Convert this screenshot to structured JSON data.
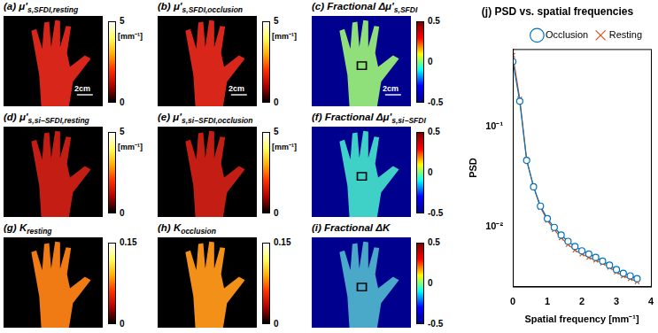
{
  "panels": [
    {
      "label": "(a)",
      "main": "μ'",
      "sub": "s,SFDI,resting",
      "color": "#d8261a",
      "scale_bar": "2cm",
      "colorbar": {
        "range": [
          0,
          5
        ],
        "ticks": [
          0,
          5
        ],
        "unit": "[mm⁻¹]"
      }
    },
    {
      "label": "(b)",
      "main": "μ'",
      "sub": "s,SFDI,occlusion",
      "color": "#d8261a",
      "scale_bar": "2cm",
      "colorbar": {
        "range": [
          0,
          5
        ],
        "ticks": [
          0,
          5
        ],
        "unit": "[mm⁻¹]"
      }
    },
    {
      "label": "(c)",
      "main": "Fractional Δμ'",
      "sub": "s,SFDI",
      "color": "#8fe07a",
      "scale_bar": "2cm",
      "colorbar": {
        "range": [
          -0.5,
          0.5
        ],
        "ticks": [
          -0.5,
          0,
          0.5
        ]
      }
    },
    {
      "label": "(d)",
      "main": "μ'",
      "sub": "s,si−SFDI,resting",
      "color": "#c41e14",
      "colorbar": {
        "range": [
          0,
          5
        ],
        "ticks": [
          0,
          5
        ],
        "unit": "[mm⁻¹]"
      }
    },
    {
      "label": "(e)",
      "main": "μ'",
      "sub": "s,si−SFDI,occlusion",
      "color": "#c41e14",
      "colorbar": {
        "range": [
          0,
          5
        ],
        "ticks": [
          0,
          5
        ],
        "unit": "[mm⁻¹]"
      }
    },
    {
      "label": "(f)",
      "main": "Fractional Δμ'",
      "sub": "s,si−SFDI",
      "color": "#3fd0c8",
      "colorbar": {
        "range": [
          -0.5,
          0.5
        ],
        "ticks": [
          -0.5,
          0,
          0.5
        ]
      }
    },
    {
      "label": "(g)",
      "main": "K",
      "sub": "resting",
      "color": "#f07a14",
      "colorbar": {
        "range": [
          0,
          0.15
        ],
        "ticks": [
          0,
          0.15
        ]
      }
    },
    {
      "label": "(h)",
      "main": "K",
      "sub": "occlusion",
      "color": "#f29018",
      "colorbar": {
        "range": [
          0,
          0.15
        ],
        "ticks": [
          0,
          0.15
        ]
      }
    },
    {
      "label": "(i)",
      "main": "Fractional ΔK",
      "color": "#4aa8c8",
      "colorbar": {
        "range": [
          -0.5,
          0.5
        ],
        "ticks": [
          -0.5,
          0,
          0.5
        ]
      }
    }
  ],
  "chart_data": {
    "type": "line",
    "title": "(j) PSD vs. spatial frequencies",
    "x_label": "Spatial frequency [mm⁻¹]",
    "y_label": "PSD",
    "x": [
      0,
      0.2,
      0.4,
      0.6,
      0.8,
      1.0,
      1.2,
      1.4,
      1.6,
      1.8,
      2.0,
      2.2,
      2.4,
      2.6,
      2.8,
      3.0,
      3.2,
      3.4,
      3.6
    ],
    "series": [
      {
        "name": "Occlusion",
        "color": "#0072bd",
        "marker": "circle",
        "line_style": "solid",
        "values": [
          0.45,
          0.18,
          0.046,
          0.025,
          0.016,
          0.012,
          0.0098,
          0.0082,
          0.0071,
          0.0063,
          0.0057,
          0.0053,
          0.0049,
          0.0045,
          0.0041,
          0.0037,
          0.0034,
          0.0032,
          0.003
        ]
      },
      {
        "name": "Resting",
        "color": "#d95319",
        "marker": "x",
        "line_style": "solid",
        "values": [
          0.52,
          0.19,
          0.047,
          0.025,
          0.0155,
          0.0115,
          0.0093,
          0.0077,
          0.0066,
          0.0058,
          0.0053,
          0.0049,
          0.0046,
          0.0043,
          0.0039,
          0.0035,
          0.0032,
          0.003,
          0.0028
        ]
      }
    ],
    "xlim": [
      0,
      4
    ],
    "xticks": [
      0,
      1,
      2,
      3,
      4
    ],
    "ylim": [
      0.0025,
      0.6
    ],
    "yticks": [
      {
        "value": 0.01,
        "label": "10⁻²"
      },
      {
        "value": 0.1,
        "label": "10⁻¹"
      }
    ],
    "log": "y",
    "grid": false,
    "legend": "upper right"
  }
}
